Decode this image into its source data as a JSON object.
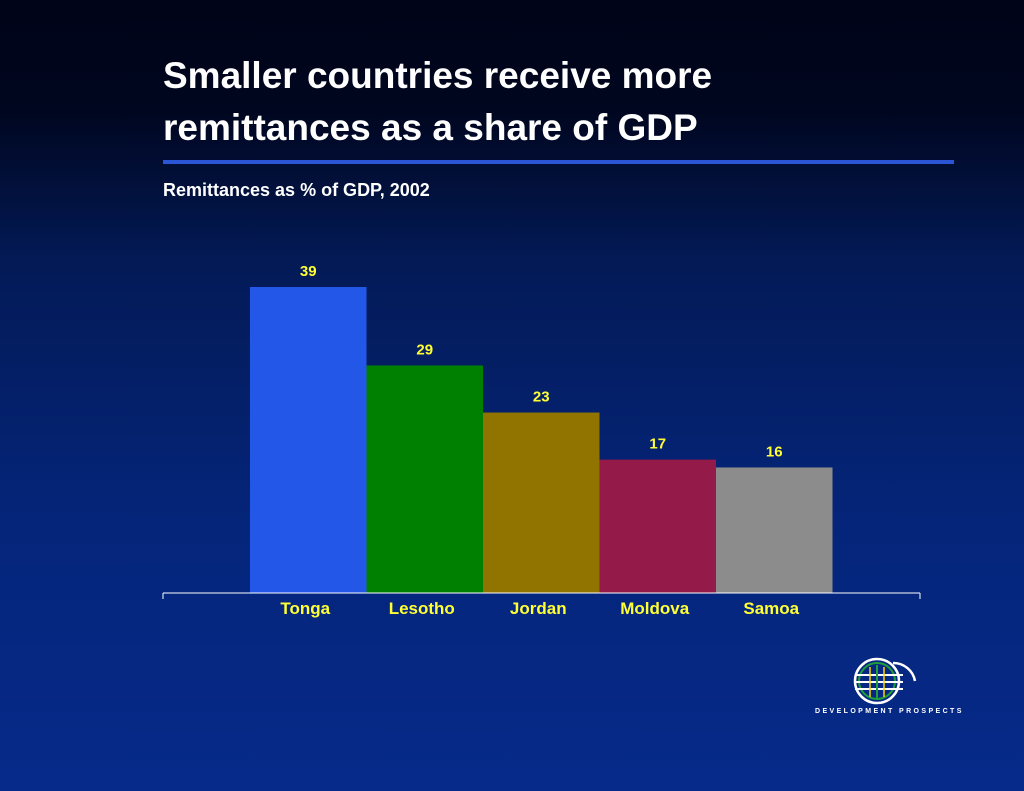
{
  "slide": {
    "title_line1": "Smaller countries receive more",
    "title_line2": "remittances as a share of GDP",
    "accent_color": "#2a56d6"
  },
  "chart_data": {
    "type": "bar",
    "title": "Remittances as % of GDP, 2002",
    "xlabel": "",
    "ylabel": "",
    "categories": [
      "Tonga",
      "Lesotho",
      "Jordan",
      "Moldova",
      "Samoa"
    ],
    "values": [
      39,
      29,
      23,
      17,
      16
    ],
    "colors": [
      "#2257e8",
      "#008000",
      "#917300",
      "#931a49",
      "#8c8c8c"
    ],
    "ylim": [
      0,
      39
    ],
    "grid": false,
    "legend": "none",
    "value_label_color": "#ffff33",
    "tick_label_color": "#ffff33"
  },
  "logo": {
    "icon": "globe-logo-icon",
    "text": "DEVELOPMENT PROSPECTS"
  }
}
